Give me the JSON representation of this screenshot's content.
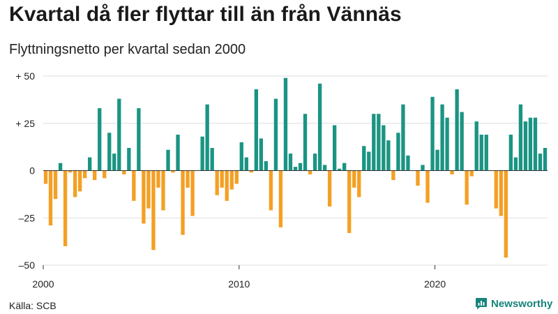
{
  "title": "Kvartal då fler flyttar till än från Vännäs",
  "subtitle": "Flyttningsnetto per kvartal sedan 2000",
  "source": "Källa: SCB",
  "brand": "Newsworthy",
  "icons": {
    "brand": "newsworthy-logo-icon"
  },
  "colors": {
    "positive": "#1b9483",
    "negative": "#f4a024",
    "grid": "#dddddd",
    "baseline": "#333333",
    "brand": "#16847a"
  },
  "chart_data": {
    "type": "bar",
    "title": "Kvartal då fler flyttar till än från Vännäs",
    "subtitle": "Flyttningsnetto per kvartal sedan 2000",
    "xlabel": "",
    "ylabel": "",
    "ylim": [
      -50,
      50
    ],
    "grid": true,
    "legend": "none",
    "y_ticks": [
      {
        "value": 50,
        "label": "+ 50"
      },
      {
        "value": 25,
        "label": "+ 25"
      },
      {
        "value": 0,
        "label": "0"
      },
      {
        "value": -25,
        "label": "–25"
      },
      {
        "value": -50,
        "label": "–50"
      }
    ],
    "x_ticks": [
      {
        "index": 0,
        "label": "2000"
      },
      {
        "index": 40,
        "label": "2010"
      },
      {
        "index": 80,
        "label": "2020"
      }
    ],
    "start_period": "2000 Q1",
    "values": [
      -7,
      -29,
      -15,
      4,
      -40,
      -1,
      -14,
      -11,
      -4,
      7,
      -5,
      33,
      -4,
      20,
      9,
      38,
      -2,
      12,
      -16,
      33,
      -28,
      -20,
      -42,
      -9,
      -21,
      11,
      -1,
      19,
      -34,
      -9,
      -24,
      0,
      18,
      35,
      12,
      -13,
      -9,
      -16,
      -10,
      -7,
      15,
      7,
      -1,
      43,
      17,
      5,
      -21,
      38,
      -30,
      49,
      9,
      2,
      4,
      30,
      -2,
      9,
      46,
      3,
      -19,
      24,
      1,
      4,
      -33,
      -9,
      -14,
      13,
      10,
      30,
      30,
      24,
      16,
      -5,
      20,
      35,
      8,
      0,
      -8,
      3,
      -17,
      39,
      11,
      35,
      28,
      -2,
      43,
      31,
      -18,
      -3,
      26,
      19,
      19,
      0,
      -20,
      -24,
      -46,
      19,
      7,
      35,
      26,
      28,
      28,
      9,
      12
    ]
  }
}
